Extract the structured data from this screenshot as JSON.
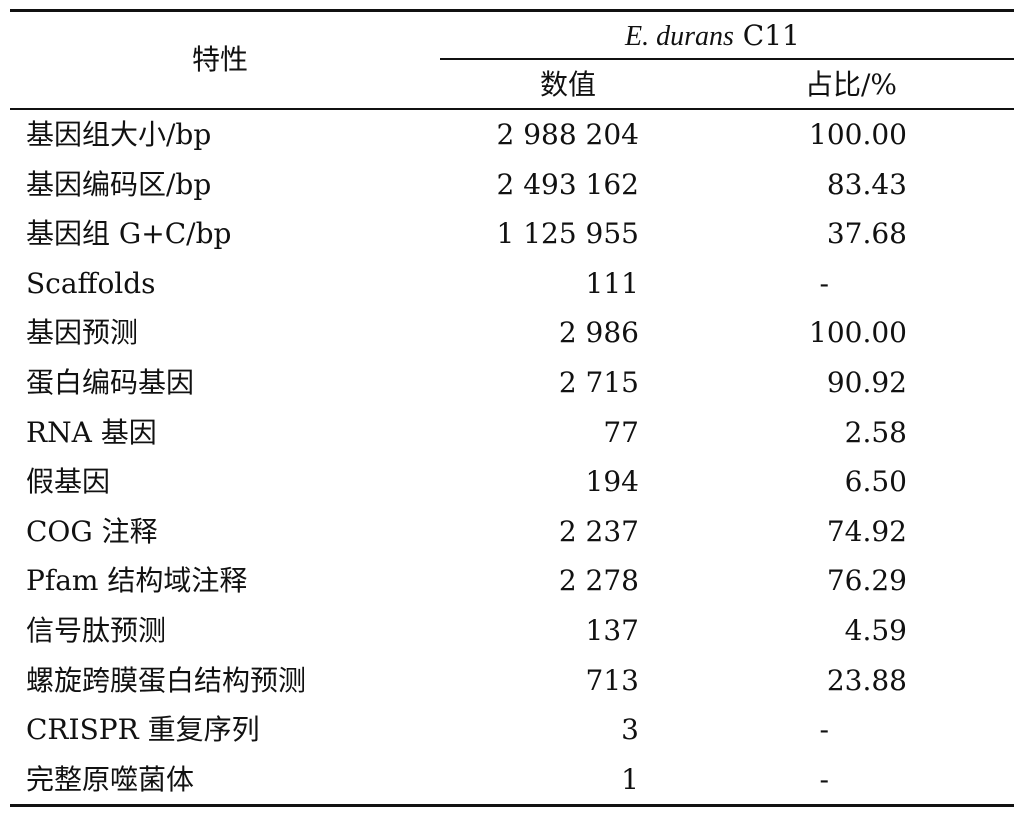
{
  "table": {
    "header": {
      "characteristic": "特性",
      "group_title_italic": "E.  durans",
      "group_title_suffix": " C11",
      "value_col": "数值",
      "ratio_col": "占比/%"
    },
    "rows": [
      {
        "label": "基因组大小/bp",
        "value": "2 988 204",
        "ratio": "100.00"
      },
      {
        "label": "基因编码区/bp",
        "value": "2 493 162",
        "ratio": "83.43"
      },
      {
        "label": "基因组 G+C/bp",
        "value": "1 125 955",
        "ratio": "37.68"
      },
      {
        "label": "Scaffolds",
        "value": "111",
        "ratio": "-"
      },
      {
        "label": "基因预测",
        "value": "2 986",
        "ratio": "100.00"
      },
      {
        "label": "蛋白编码基因",
        "value": "2 715",
        "ratio": "90.92"
      },
      {
        "label": "RNA 基因",
        "value": "77",
        "ratio": "2.58"
      },
      {
        "label": "假基因",
        "value": "194",
        "ratio": "6.50"
      },
      {
        "label": "COG 注释",
        "value": "2 237",
        "ratio": "74.92"
      },
      {
        "label": "Pfam 结构域注释",
        "value": "2 278",
        "ratio": "76.29"
      },
      {
        "label": "信号肽预测",
        "value": "137",
        "ratio": "4.59"
      },
      {
        "label": "螺旋跨膜蛋白结构预测",
        "value": "713",
        "ratio": "23.88"
      },
      {
        "label": "CRISPR 重复序列",
        "value": "3",
        "ratio": "-"
      },
      {
        "label": "完整原噬菌体",
        "value": "1",
        "ratio": "-"
      }
    ]
  }
}
